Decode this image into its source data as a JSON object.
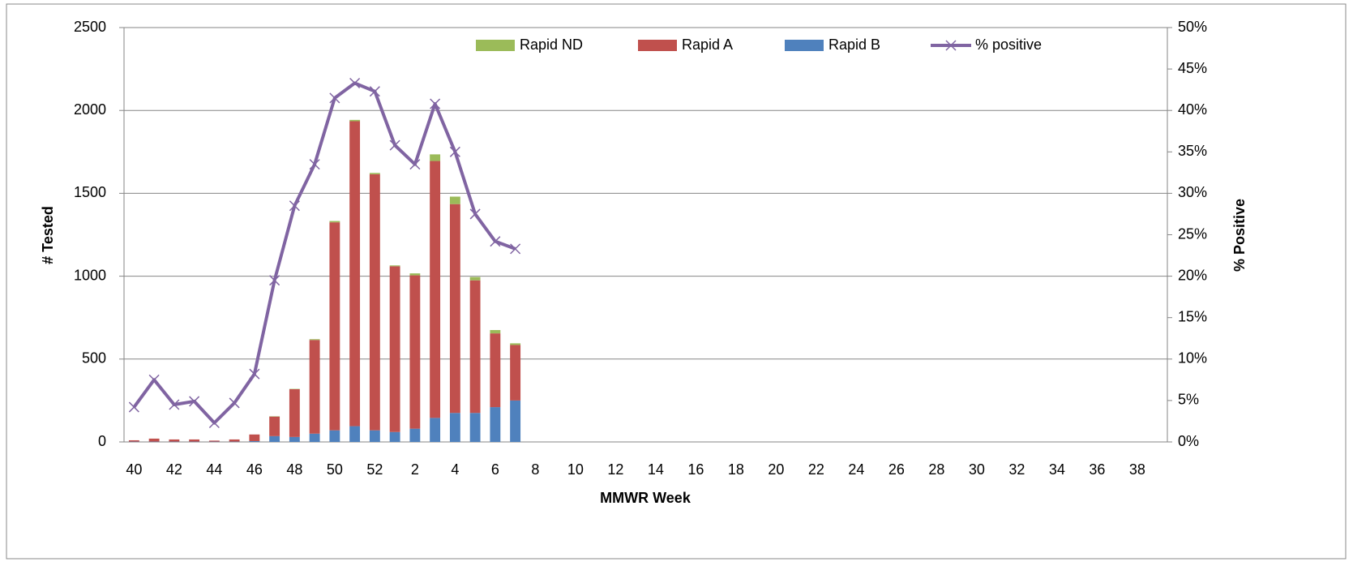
{
  "chart_data": {
    "type": "bar",
    "x_label": "MMWR Week",
    "y_label": "# Tested",
    "y2_label": "% Positive",
    "categories": [
      40,
      null,
      42,
      null,
      44,
      null,
      46,
      null,
      48,
      null,
      50,
      null,
      52,
      null,
      2,
      null,
      4,
      null,
      6,
      null,
      8,
      null,
      10,
      null,
      12,
      null,
      14,
      null,
      16,
      null,
      18,
      null,
      20,
      null,
      22,
      null,
      24,
      null,
      26,
      null,
      28,
      null,
      30,
      null,
      32,
      null,
      34,
      null,
      36,
      null,
      38,
      null
    ],
    "series": [
      {
        "name": "Rapid ND",
        "color": "#9bbb59",
        "type": "bar",
        "values": [
          0,
          0,
          0,
          0,
          0,
          0,
          0,
          2,
          2,
          5,
          8,
          8,
          8,
          5,
          12,
          40,
          45,
          20,
          20,
          10,
          null,
          null,
          null,
          null,
          null,
          null,
          null,
          null,
          null,
          null,
          null,
          null,
          null,
          null,
          null,
          null,
          null,
          null,
          null,
          null,
          null,
          null,
          null,
          null,
          null,
          null,
          null,
          null,
          null,
          null,
          null,
          null
        ]
      },
      {
        "name": "Rapid A",
        "color": "#c0504d",
        "type": "bar",
        "values": [
          8,
          18,
          13,
          13,
          6,
          13,
          40,
          118,
          288,
          565,
          1255,
          1840,
          1545,
          1000,
          925,
          1550,
          1260,
          800,
          445,
          335,
          null,
          null,
          null,
          null,
          null,
          null,
          null,
          null,
          null,
          null,
          null,
          null,
          null,
          null,
          null,
          null,
          null,
          null,
          null,
          null,
          null,
          null,
          null,
          null,
          null,
          null,
          null,
          null,
          null,
          null,
          null,
          null
        ]
      },
      {
        "name": "Rapid B",
        "color": "#4f81bd",
        "type": "bar",
        "values": [
          2,
          2,
          2,
          2,
          2,
          2,
          5,
          35,
          30,
          50,
          70,
          95,
          70,
          60,
          80,
          145,
          175,
          175,
          210,
          250,
          null,
          null,
          null,
          null,
          null,
          null,
          null,
          null,
          null,
          null,
          null,
          null,
          null,
          null,
          null,
          null,
          null,
          null,
          null,
          null,
          null,
          null,
          null,
          null,
          null,
          null,
          null,
          null,
          null,
          null,
          null,
          null
        ]
      },
      {
        "name": "% positive",
        "color": "#8064a2",
        "type": "line",
        "axis": "y2",
        "values": [
          4.2,
          7.5,
          4.5,
          4.9,
          2.3,
          4.7,
          8.2,
          19.5,
          28.5,
          33.5,
          41.5,
          43.3,
          42.3,
          35.8,
          33.5,
          40.8,
          35,
          27.5,
          24.2,
          23.3,
          null,
          null,
          null,
          null,
          null,
          null,
          null,
          null,
          null,
          null,
          null,
          null,
          null,
          null,
          null,
          null,
          null,
          null,
          null,
          null,
          null,
          null,
          null,
          null,
          null,
          null,
          null,
          null,
          null,
          null,
          null,
          null
        ]
      }
    ],
    "ylim": [
      0,
      2500
    ],
    "yticks": [
      0,
      500,
      1000,
      1500,
      2000,
      2500
    ],
    "y2lim": [
      0,
      50
    ],
    "y2ticks": [
      {
        "value": 0,
        "label": "0%"
      },
      {
        "value": 5,
        "label": "5%"
      },
      {
        "value": 10,
        "label": "10%"
      },
      {
        "value": 15,
        "label": "15%"
      },
      {
        "value": 20,
        "label": "20%"
      },
      {
        "value": 25,
        "label": "25%"
      },
      {
        "value": 30,
        "label": "30%"
      },
      {
        "value": 35,
        "label": "35%"
      },
      {
        "value": 40,
        "label": "40%"
      },
      {
        "value": 45,
        "label": "45%"
      },
      {
        "value": 50,
        "label": "50%"
      }
    ],
    "grid": true,
    "legend": "top"
  }
}
